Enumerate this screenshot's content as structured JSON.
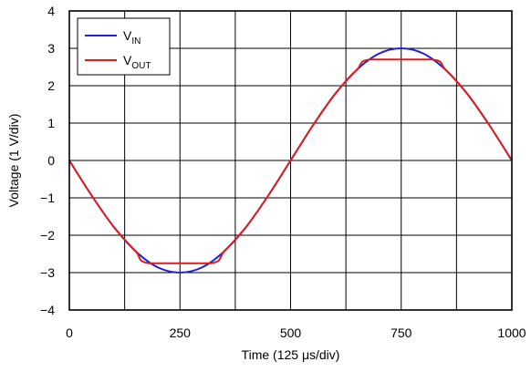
{
  "chart_data": {
    "type": "line",
    "title": "",
    "xlabel": "Time (125 μs/div)",
    "ylabel": "Voltage (1 V/div)",
    "xlim": [
      0,
      1000
    ],
    "ylim": [
      -4,
      4
    ],
    "x_ticks": [
      0,
      250,
      500,
      750,
      1000
    ],
    "x_tick_labels": [
      "0",
      "250",
      "500",
      "750",
      "1000"
    ],
    "y_ticks": [
      -4,
      -3,
      -2,
      -1,
      0,
      1,
      2,
      3,
      4
    ],
    "y_tick_labels": [
      "−4",
      "−3",
      "−2",
      "−1",
      "0",
      "1",
      "2",
      "3",
      "4"
    ],
    "grid": true,
    "legend_position": "top-left",
    "series": [
      {
        "name": "V_IN",
        "legend_main": "V",
        "legend_sub": "IN",
        "color": "#1f1fd8",
        "x": [
          0,
          50,
          100,
          150,
          200,
          250,
          300,
          350,
          400,
          450,
          500,
          550,
          600,
          650,
          700,
          750,
          800,
          850,
          900,
          950,
          1000
        ],
        "y": [
          0,
          -0.93,
          -1.77,
          -2.43,
          -2.86,
          -3.0,
          -2.86,
          -2.43,
          -1.77,
          -0.93,
          0,
          0.93,
          1.77,
          2.43,
          2.86,
          3.0,
          2.86,
          2.43,
          1.77,
          0.93,
          0
        ]
      },
      {
        "name": "V_OUT",
        "legend_main": "V",
        "legend_sub": "OUT",
        "color": "#e01b1b",
        "x": [
          0,
          50,
          100,
          150,
          180,
          320,
          350,
          400,
          450,
          500,
          550,
          600,
          650,
          680,
          820,
          850,
          900,
          950,
          1000
        ],
        "y": [
          0,
          -0.93,
          -1.77,
          -2.43,
          -2.75,
          -2.75,
          -2.43,
          -1.77,
          -0.93,
          0,
          0.93,
          1.77,
          2.43,
          2.7,
          2.7,
          2.43,
          1.77,
          0.93,
          0
        ]
      }
    ]
  }
}
